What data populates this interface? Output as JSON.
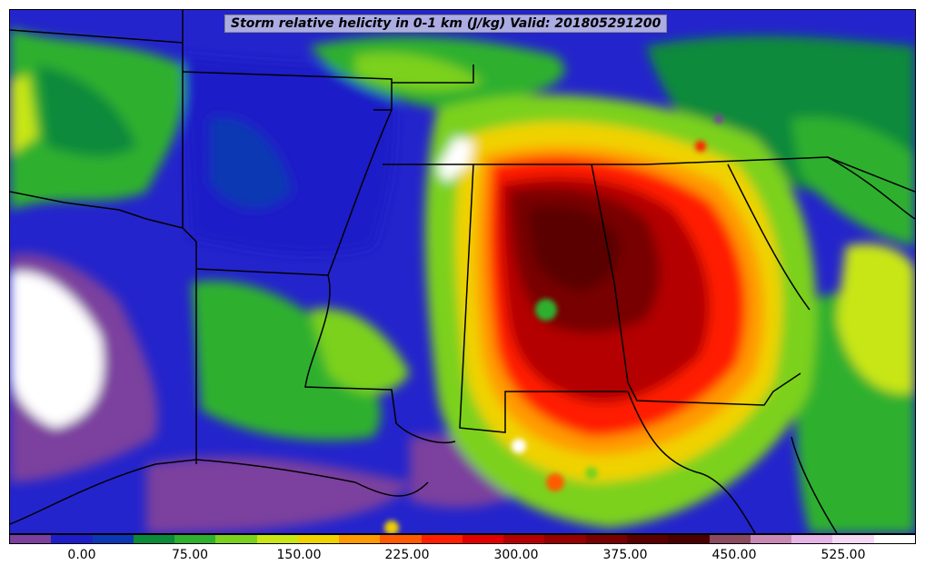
{
  "title": "Storm relative helicity in 0-1 km (J/kg) Valid: 201805291200",
  "colorbar": {
    "colors": [
      "#7b3f9e",
      "#1e1ec8",
      "#0c38b4",
      "#0a8a3a",
      "#2fb02f",
      "#7bd11e",
      "#c8e614",
      "#f0d200",
      "#ff9a00",
      "#ff5a00",
      "#ff1e00",
      "#e00000",
      "#b40000",
      "#960000",
      "#780000",
      "#5a0000",
      "#4a0000",
      "#8a4a60",
      "#c88ab4",
      "#e6b4e6",
      "#f4d8f4",
      "#ffffff"
    ],
    "tick_labels": [
      "0.00",
      "75.00",
      "150.00",
      "225.00",
      "300.00",
      "375.00",
      "450.00",
      "525.00"
    ]
  }
}
